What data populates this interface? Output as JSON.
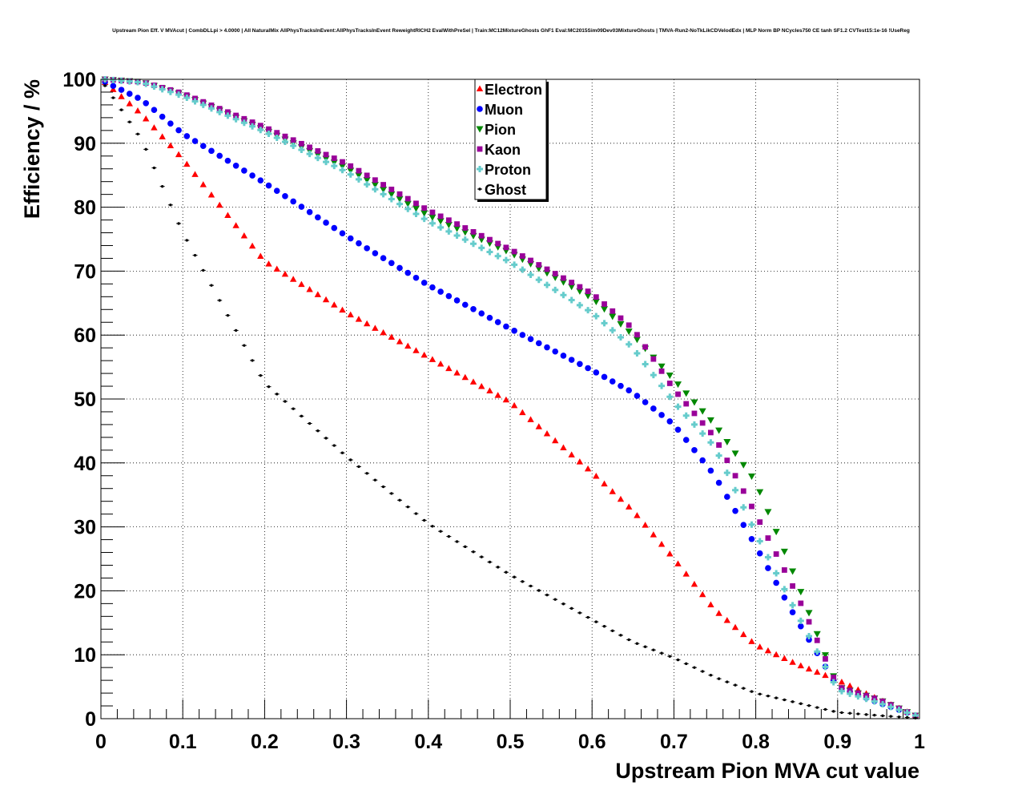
{
  "chart_data": {
    "type": "scatter",
    "title": "Upstream Pion Eff. V MVAcut | CombDLLpi > 4.0000 | All NaturalMix AllPhysTracksInEvent:AllPhysTracksInEvent ReweightRICH2 EvalWithPreSel | Train:MC12MixtureGhosts GhF1 Eval:MC2015Sim09Dev03MixtureGhosts | TMVA-Run2-NoTkLikCDVelodEdx | MLP Norm BP NCycles750 CE tanh SF1.2 CVTest15:1e-16 !UseReg",
    "xlabel": "Upstream Pion MVA cut value",
    "ylabel": "Efficiency / %",
    "xlim": [
      0,
      1
    ],
    "ylim": [
      0,
      100
    ],
    "grid": true,
    "legend_position": "top-center",
    "x_ticks": [
      "0",
      "0.1",
      "0.2",
      "0.3",
      "0.4",
      "0.5",
      "0.6",
      "0.7",
      "0.8",
      "0.9",
      "1"
    ],
    "y_ticks": [
      "0",
      "10",
      "20",
      "30",
      "40",
      "50",
      "60",
      "70",
      "80",
      "90",
      "100"
    ],
    "x_anchors": [
      0.005,
      0.05,
      0.1,
      0.2,
      0.3,
      0.4,
      0.5,
      0.6,
      0.65,
      0.7,
      0.75,
      0.8,
      0.85,
      0.9,
      0.95,
      0.995
    ],
    "series": [
      {
        "name": "Electron",
        "color": "#ff0000",
        "marker": "triangle-up",
        "values": [
          99.5,
          94.5,
          87.5,
          71.5,
          63.5,
          56.5,
          49.5,
          38.5,
          32.5,
          25.0,
          17.0,
          11.5,
          8.5,
          6.0,
          3.0,
          0.5
        ]
      },
      {
        "name": "Muon",
        "color": "#0000ff",
        "marker": "circle",
        "values": [
          99.6,
          96.8,
          91.5,
          83.8,
          75.5,
          67.8,
          61.0,
          54.5,
          51.0,
          46.0,
          38.0,
          27.0,
          15.5,
          5.0,
          2.5,
          0.5
        ]
      },
      {
        "name": "Pion",
        "color": "#008800",
        "marker": "triangle-down",
        "values": [
          100.0,
          99.6,
          97.6,
          92.1,
          86.1,
          78.7,
          72.9,
          65.8,
          60.0,
          53.0,
          46.0,
          37.0,
          21.5,
          5.0,
          3.0,
          0.5
        ]
      },
      {
        "name": "Kaon",
        "color": "#990099",
        "marker": "square",
        "values": [
          100.0,
          99.6,
          97.8,
          92.5,
          86.8,
          79.5,
          73.4,
          66.5,
          61.0,
          51.5,
          44.0,
          32.0,
          19.5,
          5.0,
          3.0,
          0.5
        ]
      },
      {
        "name": "Proton",
        "color": "#66cccc",
        "marker": "cross",
        "values": [
          100.0,
          99.5,
          97.4,
          91.8,
          85.5,
          77.8,
          71.4,
          63.5,
          58.0,
          49.5,
          42.5,
          29.0,
          16.5,
          4.5,
          2.5,
          0.5
        ]
      },
      {
        "name": "Ghost",
        "color": "#000000",
        "marker": "small-dot",
        "values": [
          99.0,
          90.5,
          76.0,
          52.5,
          41.0,
          30.5,
          22.5,
          15.5,
          12.0,
          9.5,
          6.5,
          4.0,
          2.5,
          1.0,
          0.5,
          0.1
        ]
      }
    ]
  }
}
